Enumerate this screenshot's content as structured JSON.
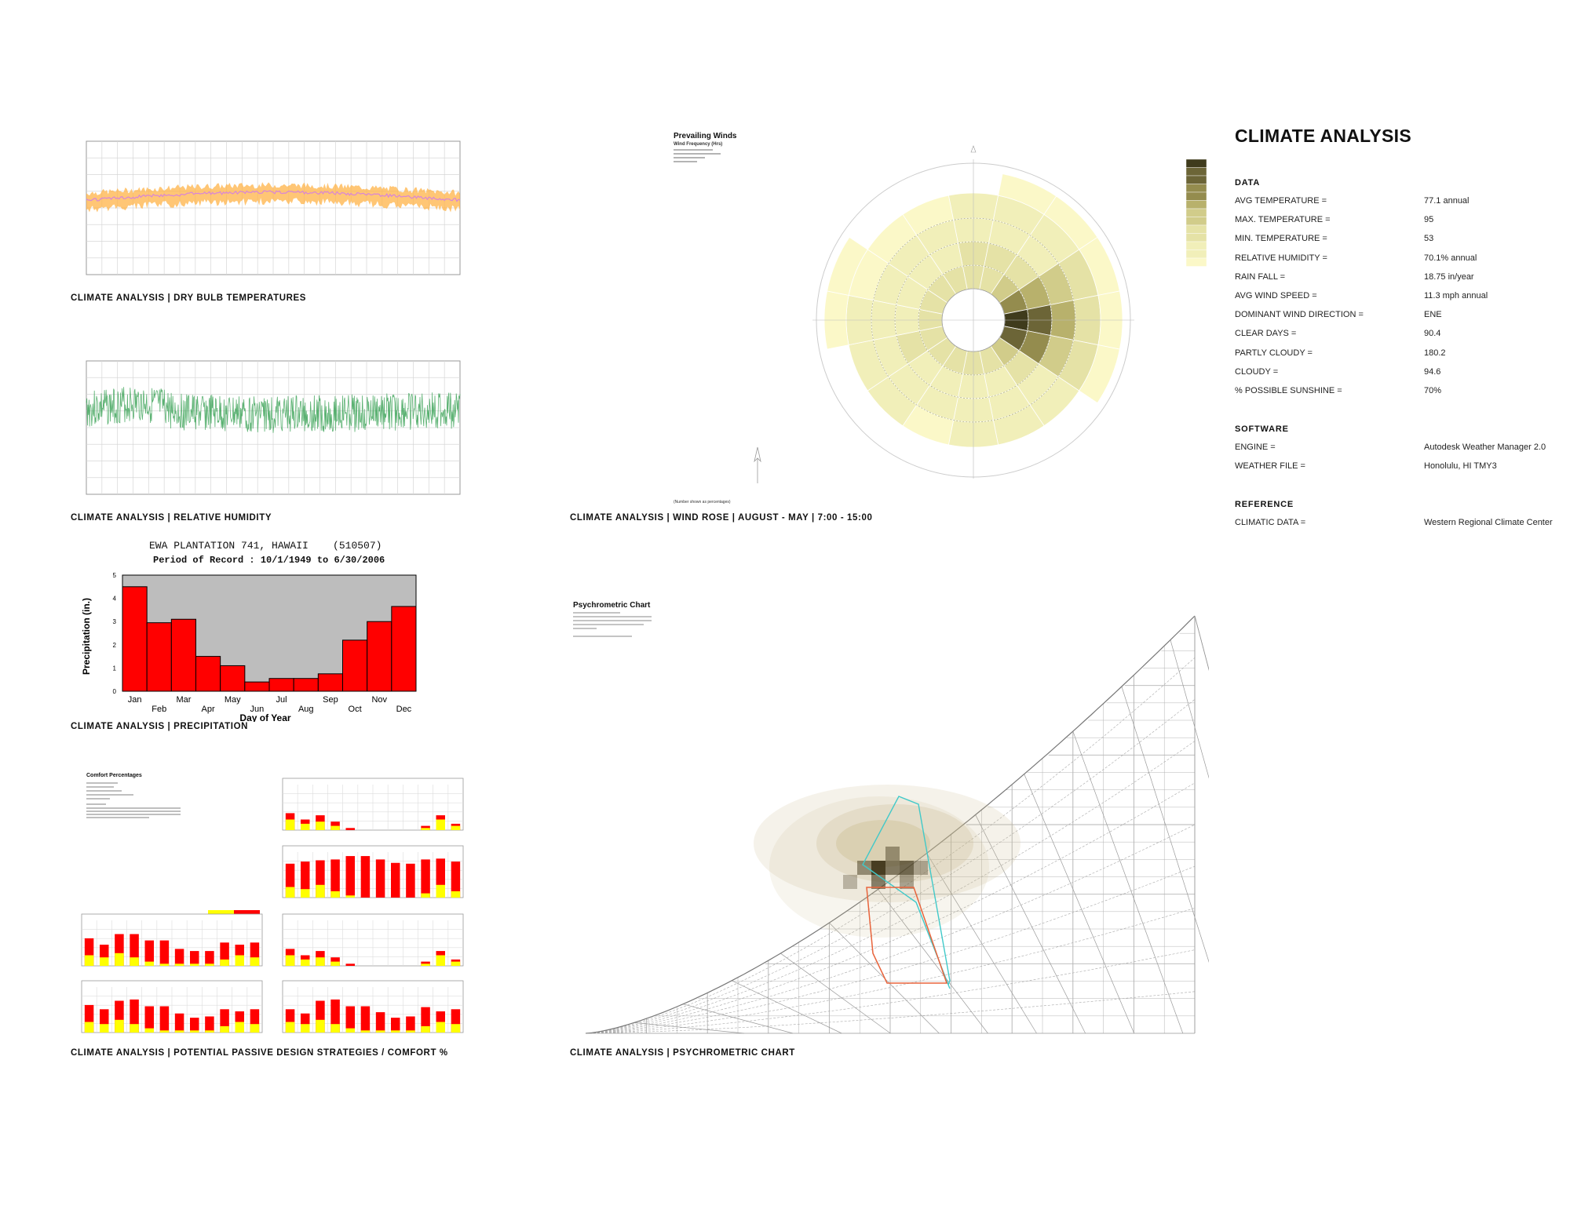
{
  "captions": {
    "dry_bulb": "CLIMATE ANALYSIS | DRY BULB TEMPERATURES",
    "humidity": "CLIMATE ANALYSIS | RELATIVE HUMIDITY",
    "precip": "CLIMATE ANALYSIS | PRECIPITATION",
    "passive": "CLIMATE ANALYSIS | POTENTIAL PASSIVE DESIGN STRATEGIES / COMFORT %",
    "windrose": "CLIMATE ANALYSIS | WIND ROSE | AUGUST - MAY | 7:00 - 15:00",
    "psychro": "CLIMATE ANALYSIS | PSYCHROMETRIC CHART"
  },
  "windrose_header": {
    "title": "Prevailing Winds",
    "subtitle": "Wind Frequency (Hrs)",
    "note": "(Number shown as percentages)"
  },
  "psychro_header": {
    "title": "Psychrometric Chart"
  },
  "comfort_header": {
    "title": "Comfort Percentages"
  },
  "summary": {
    "title": "CLIMATE ANALYSIS",
    "data_heading": "DATA",
    "data_rows": [
      {
        "label": "AVG TEMPERATURE =",
        "value": "77.1 annual"
      },
      {
        "label": "MAX. TEMPERATURE =",
        "value": "95"
      },
      {
        "label": "MIN. TEMPERATURE =",
        "value": "53"
      },
      {
        "label": "RELATIVE HUMIDITY =",
        "value": "70.1% annual"
      },
      {
        "label": "RAIN FALL =",
        "value": "18.75 in/year"
      },
      {
        "label": "AVG WIND SPEED =",
        "value": "11.3 mph annual"
      },
      {
        "label": "DOMINANT WIND DIRECTION =",
        "value": "ENE"
      },
      {
        "label": "CLEAR DAYS =",
        "value": "90.4"
      },
      {
        "label": "PARTLY CLOUDY =",
        "value": "180.2"
      },
      {
        "label": "CLOUDY =",
        "value": "94.6"
      },
      {
        "label": "% POSSIBLE SUNSHINE =",
        "value": "70%"
      }
    ],
    "software_heading": "SOFTWARE",
    "software_rows": [
      {
        "label": "ENGINE =",
        "value": "Autodesk Weather Manager 2.0"
      },
      {
        "label": "WEATHER FILE =",
        "value": "Honolulu, HI TMY3"
      }
    ],
    "reference_heading": "REFERENCE",
    "reference_rows": [
      {
        "label": "CLIMATIC DATA =",
        "value": "Western Regional Climate Center"
      }
    ]
  },
  "chart_data": [
    {
      "type": "bar",
      "title": "EWA PLANTATION 741, HAWAII    (510507)",
      "subtitle": "Period of Record : 10/1/1949 to 6/30/2006",
      "xlabel": "Day of Year",
      "ylabel": "Precipitation (in.)",
      "categories": [
        "Jan",
        "Feb",
        "Mar",
        "Apr",
        "May",
        "Jun",
        "Jul",
        "Aug",
        "Sep",
        "Oct",
        "Nov",
        "Dec"
      ],
      "values": [
        4.5,
        2.95,
        3.1,
        1.5,
        1.1,
        0.4,
        0.55,
        0.55,
        0.75,
        2.2,
        3.0,
        3.65
      ],
      "ylim": [
        0,
        5
      ],
      "yticks": [
        "0",
        "1",
        "2",
        "3",
        "4",
        "5"
      ],
      "colors": {
        "bar": "#ff0000",
        "background": "#bdbdbd"
      }
    },
    {
      "type": "bar",
      "name": "passive-strategies",
      "categories": [
        "Jan",
        "Feb",
        "Mar",
        "Apr",
        "May",
        "Jun",
        "Jul",
        "Aug",
        "Sep",
        "Oct",
        "Nov",
        "Dec"
      ],
      "panels": [
        {
          "values": [
            40,
            25,
            35,
            20,
            5,
            0,
            0,
            0,
            0,
            10,
            35,
            15
          ],
          "comfort": [
            25,
            15,
            20,
            10,
            0,
            0,
            0,
            0,
            0,
            5,
            25,
            10
          ]
        },
        {
          "values": [
            80,
            85,
            88,
            90,
            98,
            98,
            90,
            82,
            80,
            90,
            92,
            85
          ],
          "comfort": [
            25,
            20,
            30,
            15,
            5,
            0,
            0,
            0,
            0,
            10,
            30,
            15
          ]
        },
        {
          "values": [
            65,
            50,
            75,
            75,
            60,
            60,
            40,
            35,
            35,
            55,
            50,
            55
          ],
          "comfort": [
            25,
            20,
            30,
            20,
            10,
            5,
            5,
            5,
            5,
            15,
            25,
            20
          ]
        },
        {
          "values": [
            40,
            25,
            35,
            20,
            5,
            0,
            0,
            0,
            0,
            10,
            35,
            15
          ],
          "comfort": [
            25,
            15,
            20,
            10,
            0,
            0,
            0,
            0,
            0,
            5,
            25,
            10
          ]
        },
        {
          "values": [
            65,
            55,
            75,
            78,
            62,
            62,
            45,
            35,
            38,
            55,
            50,
            55
          ],
          "comfort": [
            25,
            20,
            30,
            20,
            10,
            5,
            5,
            5,
            5,
            15,
            25,
            20
          ]
        },
        {
          "values": [
            55,
            45,
            75,
            78,
            62,
            62,
            48,
            35,
            38,
            60,
            50,
            55
          ],
          "comfort": [
            25,
            20,
            30,
            20,
            10,
            5,
            5,
            5,
            5,
            15,
            25,
            20
          ]
        }
      ],
      "colors": {
        "bar": "#ff0000",
        "comfort": "#ffff00"
      }
    }
  ]
}
